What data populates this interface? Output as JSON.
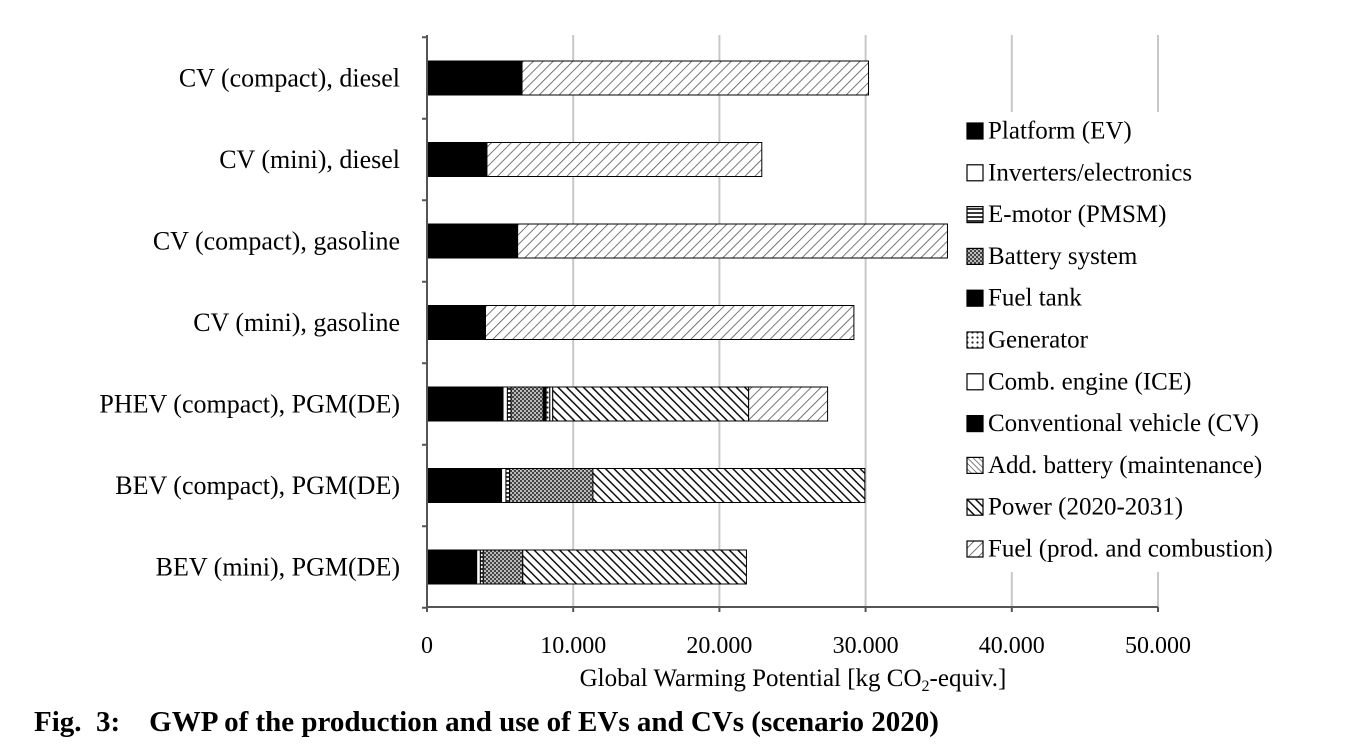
{
  "chart_data": {
    "type": "bar",
    "orientation": "horizontal",
    "stacked": true,
    "categories": [
      "CV (compact), diesel",
      "CV (mini), diesel",
      "CV (compact), gasoline",
      "CV (mini), gasoline",
      "PHEV (compact), PGM(DE)",
      "BEV (compact), PGM(DE)",
      "BEV (mini), PGM(DE)"
    ],
    "series": [
      {
        "name": "Platform (EV)",
        "pattern": "solid",
        "values": [
          0,
          0,
          0,
          0,
          5200,
          5100,
          3400
        ]
      },
      {
        "name": "Inverters/electronics",
        "pattern": "white",
        "values": [
          0,
          0,
          0,
          0,
          300,
          300,
          250
        ]
      },
      {
        "name": "E-motor (PMSM)",
        "pattern": "hlines",
        "values": [
          0,
          0,
          0,
          0,
          250,
          250,
          200
        ]
      },
      {
        "name": "Battery system",
        "pattern": "checker",
        "values": [
          0,
          0,
          0,
          0,
          2200,
          5700,
          2700
        ]
      },
      {
        "name": "Fuel tank",
        "pattern": "solid",
        "values": [
          0,
          0,
          0,
          0,
          200,
          0,
          0
        ]
      },
      {
        "name": "Generator",
        "pattern": "dots",
        "values": [
          0,
          0,
          0,
          0,
          250,
          0,
          0
        ]
      },
      {
        "name": "Comb. engine (ICE)",
        "pattern": "white",
        "values": [
          0,
          0,
          0,
          0,
          200,
          0,
          0
        ]
      },
      {
        "name": "Conventional vehicle (CV)",
        "pattern": "solid",
        "values": [
          6500,
          4100,
          6200,
          4000,
          0,
          0,
          0
        ]
      },
      {
        "name": "Add. battery (maintenance)",
        "pattern": "dense-diag",
        "values": [
          0,
          0,
          0,
          0,
          0,
          0,
          0
        ]
      },
      {
        "name": "Power (2020-2031)",
        "pattern": "dark-diag",
        "values": [
          0,
          0,
          0,
          0,
          13400,
          18600,
          15300
        ]
      },
      {
        "name": "Fuel (prod. and combustion)",
        "pattern": "light-diag",
        "values": [
          23700,
          18800,
          29400,
          25200,
          5400,
          0,
          0
        ]
      }
    ],
    "xlabel": "Global Warming Potential [kg CO₂-equiv.]",
    "xlim": [
      0,
      50000
    ],
    "xticks": [
      "0",
      "10.000",
      "20.000",
      "30.000",
      "40.000",
      "50.000"
    ],
    "xtick_values": [
      0,
      10000,
      20000,
      30000,
      40000,
      50000
    ],
    "grid": "vertical",
    "legend_position": "right"
  },
  "caption": "Fig.  3:    GWP of the production and use of EVs and CVs (scenario 2020)"
}
